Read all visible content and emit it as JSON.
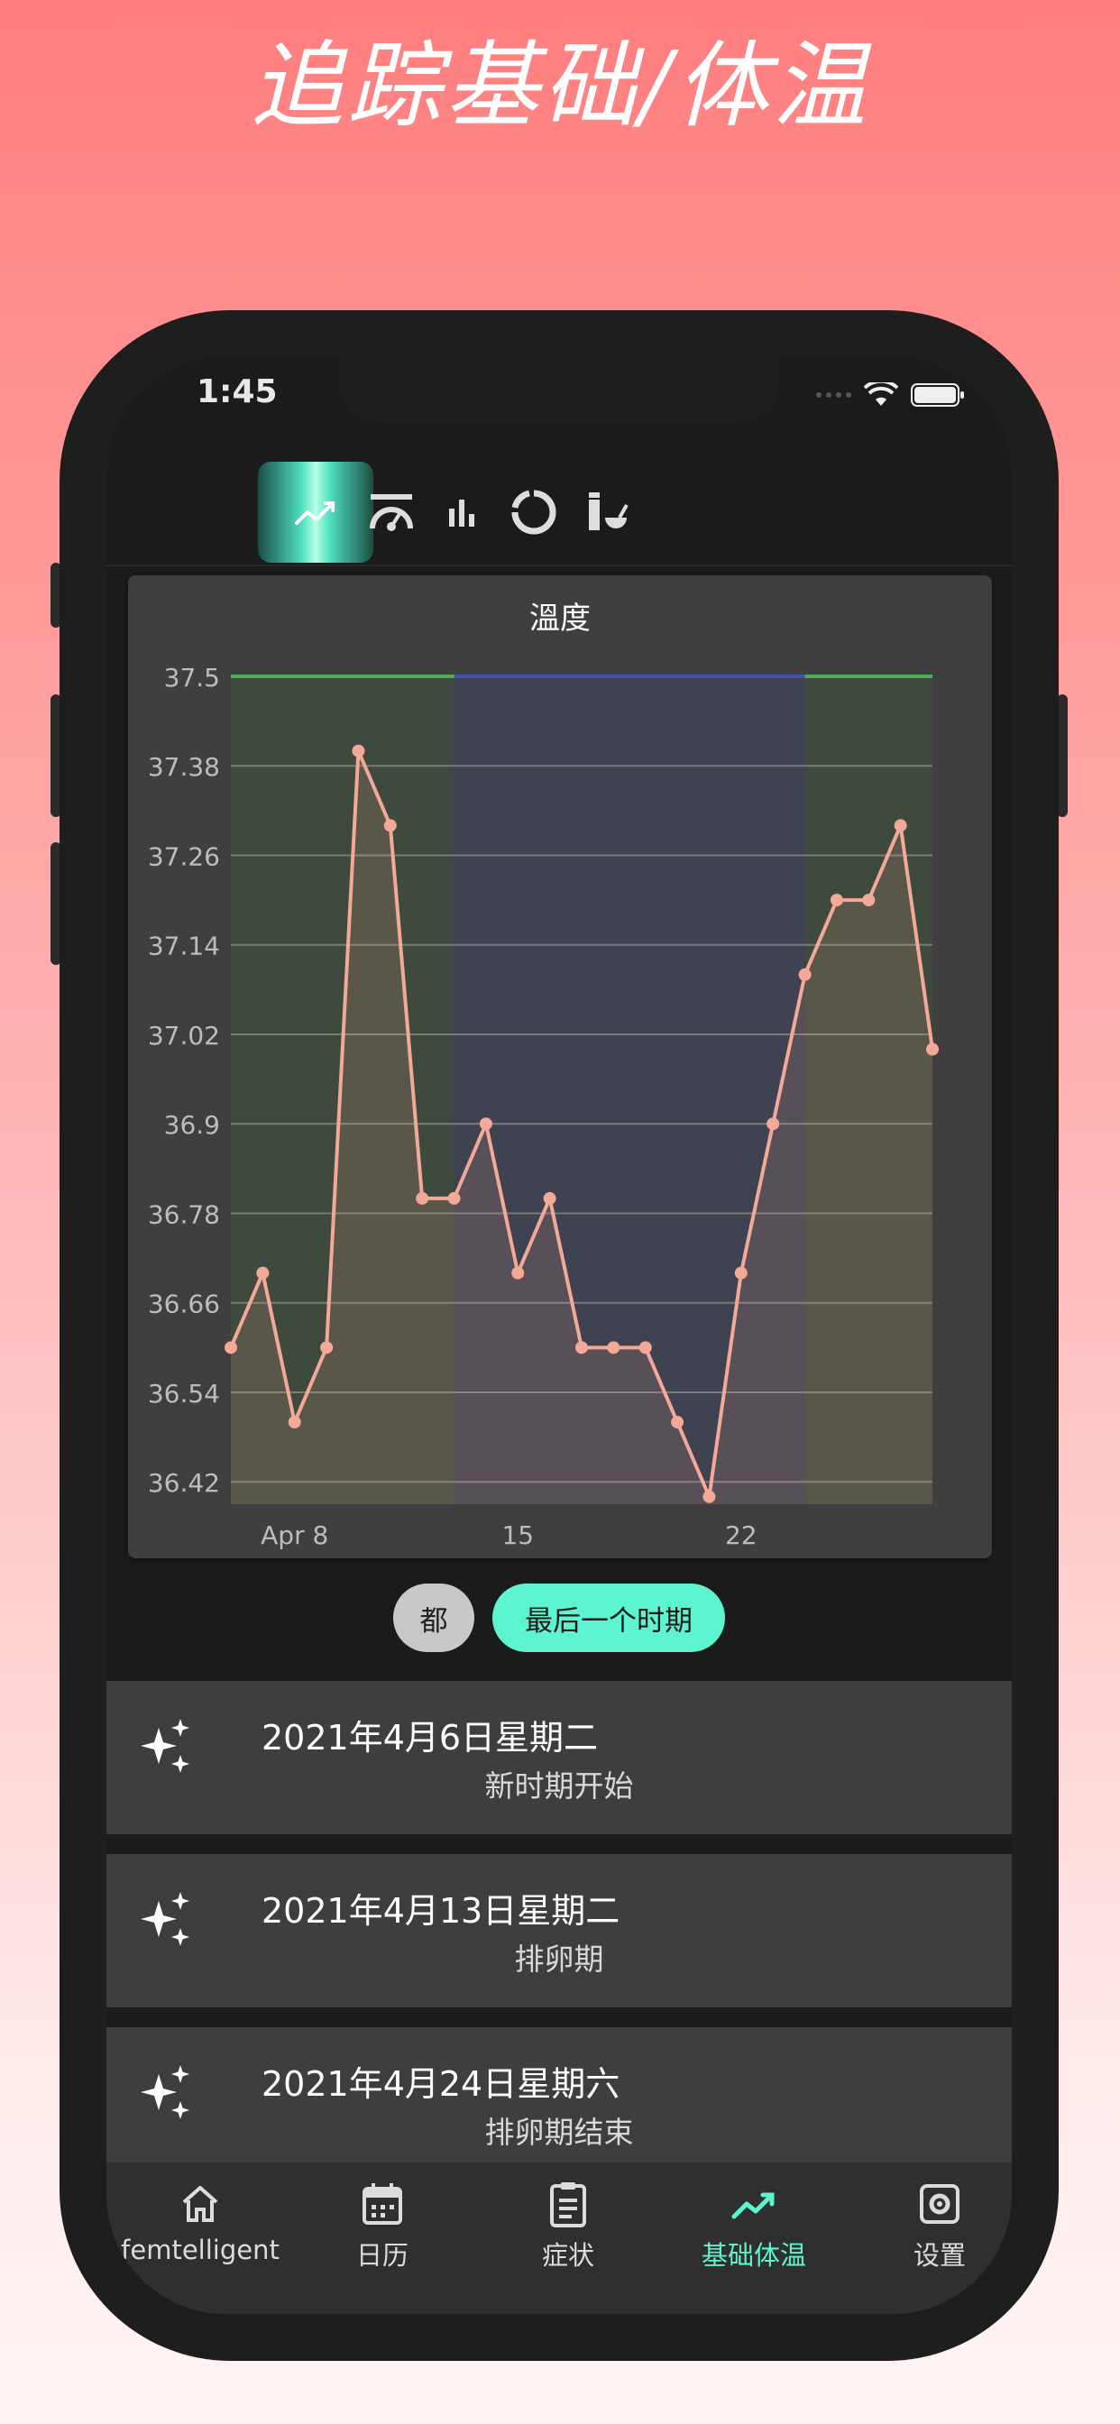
{
  "headline": "追踪基础/体温",
  "status_bar": {
    "time": "1:45"
  },
  "top_tabs": [
    {
      "icon": "line-chart-icon",
      "active": true
    },
    {
      "icon": "gauge-icon",
      "active": false
    },
    {
      "icon": "bar-chart-icon",
      "active": false
    },
    {
      "icon": "donut-chart-icon",
      "active": false
    },
    {
      "icon": "lab-flask-icon",
      "active": false
    }
  ],
  "chart_data": {
    "type": "line",
    "title": "溫度",
    "y_ticks": [
      "37.5",
      "37.38",
      "37.26",
      "37.14",
      "37.02",
      "36.9",
      "36.78",
      "36.66",
      "36.54",
      "36.42"
    ],
    "ylim": [
      36.39,
      37.5
    ],
    "x_tick_labels": [
      {
        "label": "Apr 8",
        "day": 8
      },
      {
        "label": "15",
        "day": 15
      },
      {
        "label": "22",
        "day": 22
      }
    ],
    "x_range": [
      6,
      28
    ],
    "x": [
      6,
      7,
      8,
      9,
      10,
      11,
      12,
      13,
      14,
      15,
      16,
      17,
      18,
      19,
      20,
      21,
      22,
      23,
      24,
      25,
      26,
      27,
      28
    ],
    "values": [
      36.6,
      36.7,
      36.5,
      36.6,
      37.4,
      37.3,
      36.8,
      36.8,
      36.9,
      36.7,
      36.8,
      36.6,
      36.6,
      36.6,
      36.5,
      36.4,
      36.7,
      36.9,
      37.1,
      37.2,
      37.2,
      37.3,
      37.0
    ],
    "phases": [
      {
        "from": 6,
        "to": 13,
        "color": "#3f4a3e",
        "top_line": "#4caf50"
      },
      {
        "from": 13,
        "to": 24,
        "color": "#3f4250",
        "top_line": "#3f51b5"
      },
      {
        "from": 24,
        "to": 28,
        "color": "#3f4a3e",
        "top_line": "#4caf50"
      }
    ],
    "line_color": "#f4a896",
    "grid": true
  },
  "filters": {
    "all_label": "都",
    "last_period_label": "最后一个时期"
  },
  "events": [
    {
      "date": "2021年4月6日星期二",
      "desc": "新时期开始"
    },
    {
      "date": "2021年4月13日星期二",
      "desc": "排卵期"
    },
    {
      "date": "2021年4月24日星期六",
      "desc": "排卵期结束"
    }
  ],
  "bottom_nav": [
    {
      "label": "femtelligent",
      "icon": "home-icon"
    },
    {
      "label": "日历",
      "icon": "calendar-icon"
    },
    {
      "label": "症状",
      "icon": "clipboard-icon"
    },
    {
      "label": "基础体温",
      "icon": "trend-icon",
      "active": true
    },
    {
      "label": "设置",
      "icon": "settings-icon"
    }
  ],
  "colors": {
    "accent": "#5cf5cf",
    "background_gradient_top": "#ff7e7e"
  }
}
